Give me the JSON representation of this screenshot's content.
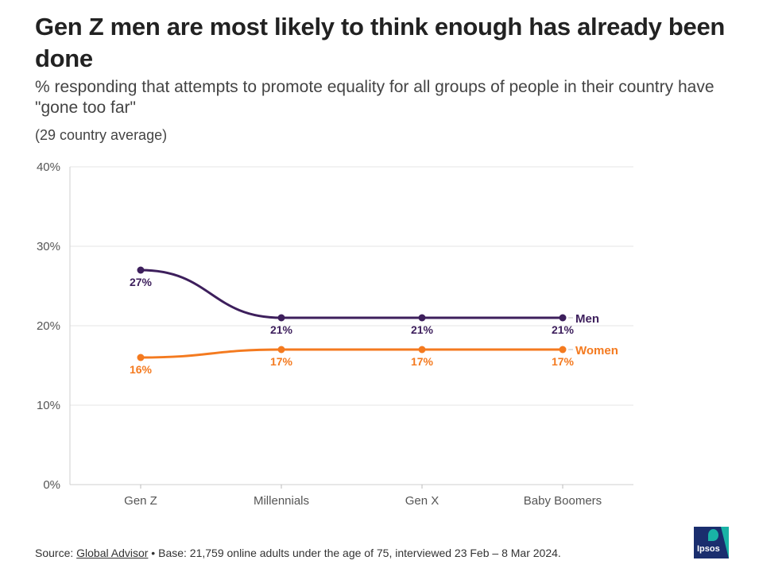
{
  "header": {
    "title": "Gen Z men are most likely to think enough has already been done",
    "subtitle": "% responding that attempts to promote equality for all groups of people in their country have \"gone too far\"",
    "note": "(29 country average)"
  },
  "chart_data": {
    "type": "line",
    "categories": [
      "Gen Z",
      "Millennials",
      "Gen X",
      "Baby Boomers"
    ],
    "series": [
      {
        "name": "Men",
        "values": [
          27,
          21,
          21,
          21
        ],
        "color": "#3d1f5c",
        "labels": [
          "27%",
          "21%",
          "21%",
          "21%"
        ]
      },
      {
        "name": "Women",
        "values": [
          16,
          17,
          17,
          17
        ],
        "color": "#f47a1f",
        "labels": [
          "16%",
          "17%",
          "17%",
          "17%"
        ]
      }
    ],
    "yticks": [
      0,
      10,
      20,
      30,
      40
    ],
    "ytick_labels": [
      "0%",
      "10%",
      "20%",
      "30%",
      "40%"
    ],
    "ylim": [
      0,
      40
    ],
    "grid": true,
    "legend": "end-of-line labels"
  },
  "footer": {
    "source_prefix": "Source: ",
    "source_link": "Global Advisor",
    "base_text": " • Base: 21,759 online adults under the age of 75, interviewed 23 Feb – 8 Mar 2024."
  },
  "logo": {
    "text": "Ipsos",
    "colors": {
      "navy": "#1a2e6e",
      "teal": "#19b3a6"
    }
  }
}
